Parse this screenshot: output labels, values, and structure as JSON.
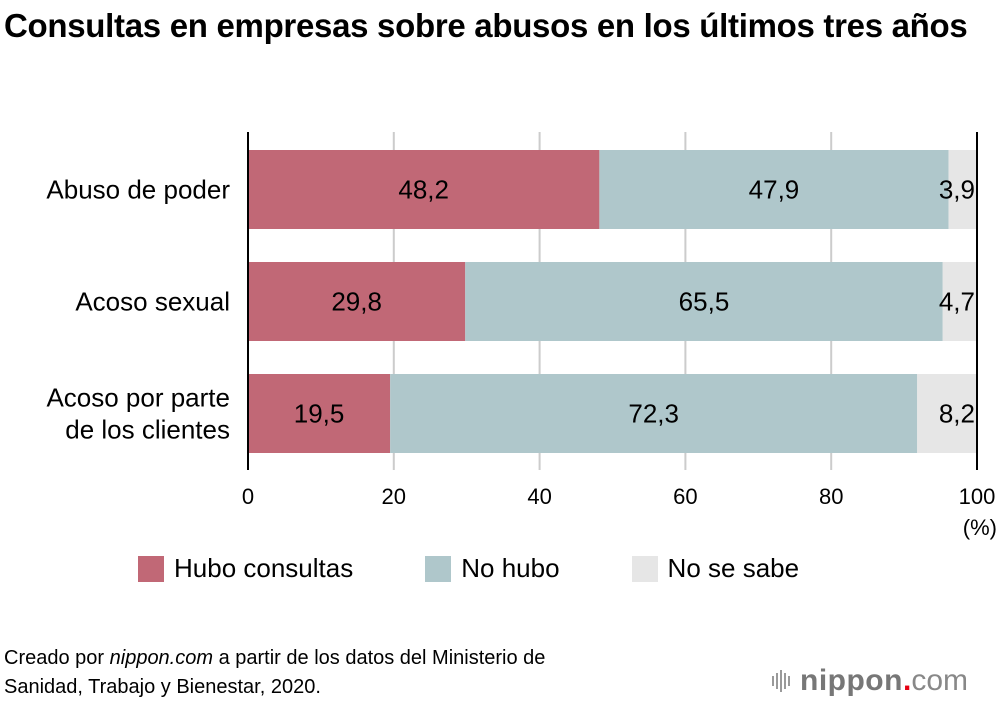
{
  "title": "Consultas en empresas sobre abusos en los últimos tres años",
  "chart_data": {
    "type": "bar",
    "orientation": "horizontal",
    "stacked": true,
    "title": "Consultas en empresas sobre abusos en los últimos tres años",
    "categories": [
      "Abuso de poder",
      "Acoso sexual",
      "Acoso por parte de los clientes"
    ],
    "category_lines": [
      [
        "Abuso de poder"
      ],
      [
        "Acoso sexual"
      ],
      [
        "Acoso por parte",
        "de los clientes"
      ]
    ],
    "series": [
      {
        "name": "Hubo consultas",
        "color": "#c16876",
        "values": [
          48.2,
          29.8,
          19.5
        ],
        "labels": [
          "48,2",
          "29,8",
          "19,5"
        ]
      },
      {
        "name": "No hubo",
        "color": "#afc7cb",
        "values": [
          47.9,
          65.5,
          72.3
        ],
        "labels": [
          "47,9",
          "65,5",
          "72,3"
        ]
      },
      {
        "name": "No se sabe",
        "color": "#e6e6e6",
        "values": [
          3.9,
          4.7,
          8.2
        ],
        "labels": [
          "3,9",
          "4,7",
          "8,2"
        ]
      }
    ],
    "xlabel": "(%)",
    "ylabel": "",
    "xlim": [
      0,
      100
    ],
    "xticks": [
      0,
      20,
      40,
      60,
      80,
      100
    ],
    "xtick_labels": [
      "0",
      "20",
      "40",
      "60",
      "80",
      "100"
    ],
    "grid": true,
    "legend": "bottom"
  },
  "legend": [
    {
      "label": "Hubo consultas",
      "color": "#c16876"
    },
    {
      "label": "No hubo",
      "color": "#afc7cb"
    },
    {
      "label": "No se sabe",
      "color": "#e6e6e6"
    }
  ],
  "source": {
    "prefix": "Creado por ",
    "site": "nippon.com",
    "line1_rest": " a partir de los datos del Ministerio de",
    "line2": "Sanidad, Trabajo y Bienestar, 2020."
  },
  "logo": {
    "name": "nippon",
    "dot": ".",
    "tld": "com"
  }
}
